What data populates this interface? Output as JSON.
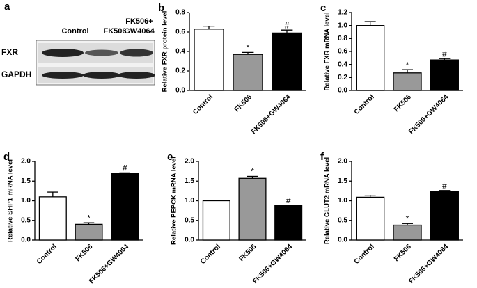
{
  "blot": {
    "panel": "a",
    "columns": [
      [
        "Control"
      ],
      [
        "FK506"
      ],
      [
        "FK506+",
        "GW4064"
      ]
    ],
    "rows": [
      "FXR",
      "GAPDH"
    ]
  },
  "chart_data": [
    {
      "type": "bar",
      "panel": "b",
      "ylabel": "Relative FXR protein level",
      "categories": [
        "Control",
        "FK506",
        "FK506+GW4064"
      ],
      "values": [
        0.63,
        0.37,
        0.59
      ],
      "errors": [
        0.03,
        0.02,
        0.03
      ],
      "markers": [
        null,
        "*",
        "#"
      ],
      "colors": [
        "#ffffff",
        "#999999",
        "#000000"
      ],
      "ylim": [
        0,
        0.8
      ],
      "yticks": [
        {
          "value": 0,
          "label": "0.0"
        },
        0.2,
        0.4,
        0.6,
        0.8
      ]
    },
    {
      "type": "bar",
      "panel": "c",
      "ylabel": "Relative FXR mRNA level",
      "categories": [
        "Control",
        "FK506",
        "FK506+GW4064"
      ],
      "values": [
        1.0,
        0.27,
        0.47
      ],
      "errors": [
        0.06,
        0.05,
        0.02
      ],
      "markers": [
        null,
        "*",
        "#"
      ],
      "colors": [
        "#ffffff",
        "#999999",
        "#000000"
      ],
      "ylim": [
        0,
        1.2
      ],
      "yticks": [
        {
          "value": 0,
          "label": "0.0"
        },
        0.2,
        0.4,
        0.6,
        0.8,
        {
          "value": 1,
          "label": "1.0"
        },
        1.2
      ]
    },
    {
      "type": "bar",
      "panel": "d",
      "ylabel": "Relative SHP1 mRNA level",
      "categories": [
        "Control",
        "FK506",
        "FK506+GW4064"
      ],
      "values": [
        1.1,
        0.4,
        1.69
      ],
      "errors": [
        0.12,
        0.04,
        0.02
      ],
      "markers": [
        null,
        "*",
        "#"
      ],
      "colors": [
        "#ffffff",
        "#999999",
        "#000000"
      ],
      "ylim": [
        0,
        2
      ],
      "yticks": [
        {
          "value": 0,
          "label": "0.0"
        },
        0.5,
        {
          "value": 1,
          "label": "1.0"
        },
        1.5,
        {
          "value": 2,
          "label": "2.0"
        }
      ]
    },
    {
      "type": "bar",
      "panel": "e",
      "ylabel": "Relative PEPCK mRNA level",
      "categories": [
        "Control",
        "FK506",
        "FK506+GW4064"
      ],
      "values": [
        1.0,
        1.57,
        0.88
      ],
      "errors": [
        0.01,
        0.05,
        0.01
      ],
      "markers": [
        null,
        "*",
        "#"
      ],
      "colors": [
        "#ffffff",
        "#999999",
        "#000000"
      ],
      "ylim": [
        0,
        2
      ],
      "yticks": [
        {
          "value": 0,
          "label": "0.0"
        },
        0.5,
        {
          "value": 1,
          "label": "1.0"
        },
        1.5,
        {
          "value": 2,
          "label": "2.0"
        }
      ]
    },
    {
      "type": "bar",
      "panel": "f",
      "ylabel": "Relative GLUT2 mRNA level",
      "categories": [
        "Control",
        "FK506",
        "FK506+GW4064"
      ],
      "values": [
        1.09,
        0.38,
        1.23
      ],
      "errors": [
        0.05,
        0.04,
        0.03
      ],
      "markers": [
        null,
        "*",
        "#"
      ],
      "colors": [
        "#ffffff",
        "#999999",
        "#000000"
      ],
      "ylim": [
        0,
        2
      ],
      "yticks": [
        {
          "value": 0,
          "label": "0.0"
        },
        0.5,
        {
          "value": 1,
          "label": "1.0"
        },
        1.5,
        {
          "value": 2,
          "label": "2.0"
        }
      ]
    }
  ]
}
